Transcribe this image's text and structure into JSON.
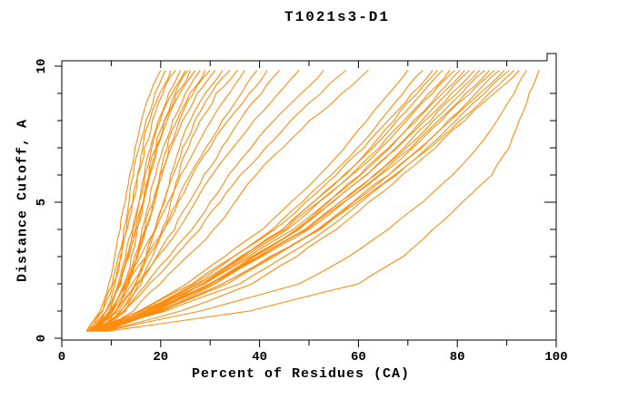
{
  "title": "T1021s3-D1",
  "chart_data": {
    "type": "line",
    "title": "T1021s3-D1",
    "xlabel": "Percent of Residues (CA)",
    "ylabel": "Distance Cutoff, A",
    "xlim": [
      0,
      100
    ],
    "ylim": [
      0,
      10
    ],
    "x_major_ticks": [
      0,
      20,
      40,
      60,
      80,
      100
    ],
    "x_minor_step": 10,
    "y_major_ticks": [
      0,
      5,
      10
    ],
    "y_minor_step": 1,
    "grid": false,
    "legend": false,
    "background": "#ffffff",
    "axis_color": "#000000",
    "line_color": "#ff8c0e",
    "y_levels": [
      0.25,
      1,
      2,
      3,
      4,
      5,
      6,
      7,
      8,
      9,
      9.85
    ],
    "series": [
      [
        5,
        7.7,
        9.5,
        10.7,
        11.8,
        12.8,
        13.7,
        14.8,
        16.1,
        17.9,
        20
      ],
      [
        5.5,
        8.3,
        10.2,
        11.4,
        12.5,
        13.6,
        14.5,
        15.6,
        17,
        18.8,
        21
      ],
      [
        6,
        8.9,
        10.8,
        12.1,
        13.2,
        14.3,
        15.3,
        16.4,
        17.8,
        19.8,
        22
      ],
      [
        5,
        8.2,
        10.4,
        11.8,
        13.1,
        14.4,
        15.4,
        16.7,
        18.3,
        20.5,
        23
      ],
      [
        6.5,
        9.7,
        11.8,
        13.2,
        14.4,
        15.6,
        16.7,
        17.9,
        19.5,
        21.6,
        24
      ],
      [
        5.5,
        9,
        11.4,
        12.9,
        14.3,
        15.6,
        16.8,
        18.2,
        19.9,
        22.3,
        25
      ],
      [
        7,
        10.3,
        12.6,
        14,
        15.3,
        16.6,
        17.7,
        19,
        20.7,
        22.9,
        25.5
      ],
      [
        6,
        9.6,
        12,
        13.6,
        15,
        16.4,
        17.6,
        19,
        20.8,
        23.2,
        26
      ],
      [
        5,
        9,
        11.6,
        13.4,
        14.9,
        16.4,
        17.8,
        19.3,
        21.3,
        23.9,
        27
      ],
      [
        6.5,
        10.4,
        12.9,
        14.7,
        16.2,
        17.7,
        19,
        20.5,
        22.4,
        25,
        28
      ],
      [
        7,
        11,
        13.6,
        15.4,
        16.9,
        18.4,
        19.8,
        21.3,
        23.3,
        25.9,
        29
      ],
      [
        6,
        10.3,
        13.2,
        15.1,
        16.8,
        18.5,
        19.9,
        21.6,
        23.8,
        26.6,
        30
      ],
      [
        5.5,
        10.1,
        13.2,
        15.2,
        17,
        18.8,
        20.3,
        22.1,
        24.4,
        27.4,
        31
      ],
      [
        7.5,
        12,
        15,
        17,
        18.8,
        20.5,
        22,
        23.8,
        26,
        29,
        32.5
      ],
      [
        6.5,
        11.5,
        14.8,
        17,
        18.9,
        20.8,
        22.5,
        24.4,
        26.9,
        30.2,
        34
      ],
      [
        8,
        12.9,
        16.1,
        18.3,
        20.2,
        22,
        23.7,
        25.6,
        28,
        31.2,
        35.5
      ],
      [
        6,
        9.7,
        12.8,
        15.9,
        19,
        21.5,
        24,
        27.1,
        30.2,
        33.9,
        37
      ],
      [
        7,
        10.9,
        14.2,
        17.4,
        20.7,
        23.3,
        25.9,
        29.1,
        32.4,
        36.3,
        39.5
      ],
      [
        5.5,
        9.8,
        13.4,
        17,
        20.6,
        23.5,
        26.4,
        30,
        33.6,
        37.9,
        41.5
      ],
      [
        7.5,
        11.9,
        15.5,
        19.2,
        22.8,
        25.8,
        28.7,
        32.3,
        36,
        40.4,
        44
      ],
      [
        6,
        11,
        15.2,
        19.4,
        23.6,
        27,
        30.4,
        34.6,
        38.8,
        43.8,
        48
      ],
      [
        7,
        12.5,
        17.1,
        21.7,
        26.3,
        30,
        33.7,
        38.3,
        42.9,
        48.4,
        53
      ],
      [
        6.5,
        12.6,
        17.7,
        22.8,
        27.9,
        32,
        36.1,
        41.2,
        46.3,
        52.4,
        57.5
      ],
      [
        8,
        14.5,
        19.9,
        25.3,
        30.7,
        35,
        39.3,
        44.7,
        50.1,
        56.6,
        62
      ],
      [
        6,
        15.6,
        25.2,
        32.9,
        40.6,
        46.3,
        52.1,
        57.2,
        61.7,
        66.2,
        70
      ],
      [
        7,
        16.9,
        26.8,
        34.7,
        42.6,
        48.6,
        54.5,
        59.8,
        64.4,
        69,
        73
      ],
      [
        5.5,
        15.9,
        26.4,
        34.7,
        43,
        49.3,
        55.5,
        61.1,
        66,
        70.8,
        75
      ],
      [
        8,
        18.2,
        28.4,
        36.6,
        44.7,
        50.8,
        57,
        62.4,
        67.2,
        71.9,
        76
      ],
      [
        6.5,
        17.1,
        27.7,
        36.1,
        44.6,
        50.9,
        57.3,
        62.9,
        67.8,
        72.8,
        77
      ],
      [
        7,
        17.7,
        28.5,
        37,
        45.6,
        52,
        58.5,
        64.2,
        69.2,
        74.2,
        78.5
      ],
      [
        5,
        16.2,
        27.4,
        36.3,
        45.2,
        51.9,
        58.6,
        64.6,
        69.8,
        75,
        79.5
      ],
      [
        8.5,
        19.3,
        30.1,
        38.7,
        47.4,
        53.9,
        60.3,
        66.1,
        71.1,
        76.2,
        80.5
      ],
      [
        6,
        17.3,
        28.7,
        37.7,
        46.8,
        53.6,
        60.4,
        66.4,
        71.7,
        77,
        81.5
      ],
      [
        7.5,
        18.8,
        30,
        39,
        48,
        54.8,
        61.5,
        67.5,
        72.8,
        78,
        82.5
      ],
      [
        5.5,
        17.2,
        28.9,
        38.3,
        47.6,
        54.6,
        61.7,
        67.9,
        73.4,
        78.8,
        83.5
      ],
      [
        8,
        19.5,
        31,
        40.1,
        49.3,
        56.2,
        63.1,
        69.2,
        74.6,
        79.9,
        84.5
      ],
      [
        6.5,
        18.4,
        30.2,
        39.7,
        49.2,
        56.3,
        63.4,
        69.7,
        75.2,
        80.8,
        85.5
      ],
      [
        7,
        18.9,
        30.9,
        40.4,
        49.9,
        57.1,
        64.2,
        70.6,
        76.2,
        81.7,
        86.5
      ],
      [
        5,
        17.4,
        29.8,
        39.7,
        49.6,
        57,
        64.4,
        71,
        76.8,
        82.6,
        87.5
      ],
      [
        8.5,
        20.5,
        32.5,
        42.1,
        51.7,
        58.9,
        66.1,
        72.5,
        78.1,
        83.7,
        88.5
      ],
      [
        6,
        20,
        33.5,
        43,
        52,
        59,
        66.1,
        72.8,
        78.6,
        84.5,
        89.5
      ],
      [
        7.5,
        20,
        32.4,
        42.4,
        52.3,
        59.8,
        67.3,
        73.9,
        79.7,
        85.5,
        90.5
      ],
      [
        6.5,
        21,
        36,
        45,
        53.5,
        60.5,
        67.7,
        74.5,
        80.5,
        86.4,
        91.5
      ],
      [
        8,
        24,
        38.5,
        47.5,
        55.5,
        62,
        68.8,
        75.6,
        81.5,
        87.4,
        92.5
      ],
      [
        8.5,
        28,
        48,
        58,
        66,
        73,
        79,
        84,
        88,
        91.5,
        94
      ],
      [
        9,
        38,
        60,
        69,
        75,
        81,
        87,
        90.5,
        92.5,
        94.5,
        96.5
      ]
    ]
  }
}
